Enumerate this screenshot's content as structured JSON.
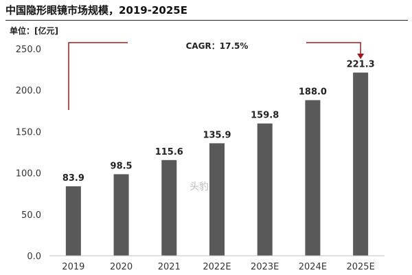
{
  "chart_data": {
    "type": "bar",
    "title": "中国隐形眼镜市场规模，2019-2025E",
    "unit_label": "单位：[亿元]",
    "categories": [
      "2019",
      "2020",
      "2021",
      "2022E",
      "2023E",
      "2024E",
      "2025E"
    ],
    "values": [
      83.9,
      98.5,
      115.6,
      135.9,
      159.8,
      188.0,
      221.3
    ],
    "value_labels": [
      "83.9",
      "98.5",
      "115.6",
      "135.9",
      "159.8",
      "188.0",
      "221.3"
    ],
    "y_ticks": [
      "0.0",
      "50.0",
      "100.0",
      "150.0",
      "200.0",
      "250.0"
    ],
    "ylim": [
      0,
      250
    ],
    "grid": false,
    "annotation": "CAGR：17.5%",
    "watermark": "头豹",
    "colors": {
      "bar": "#595959",
      "annotation_line": "#9b1b1b"
    }
  }
}
